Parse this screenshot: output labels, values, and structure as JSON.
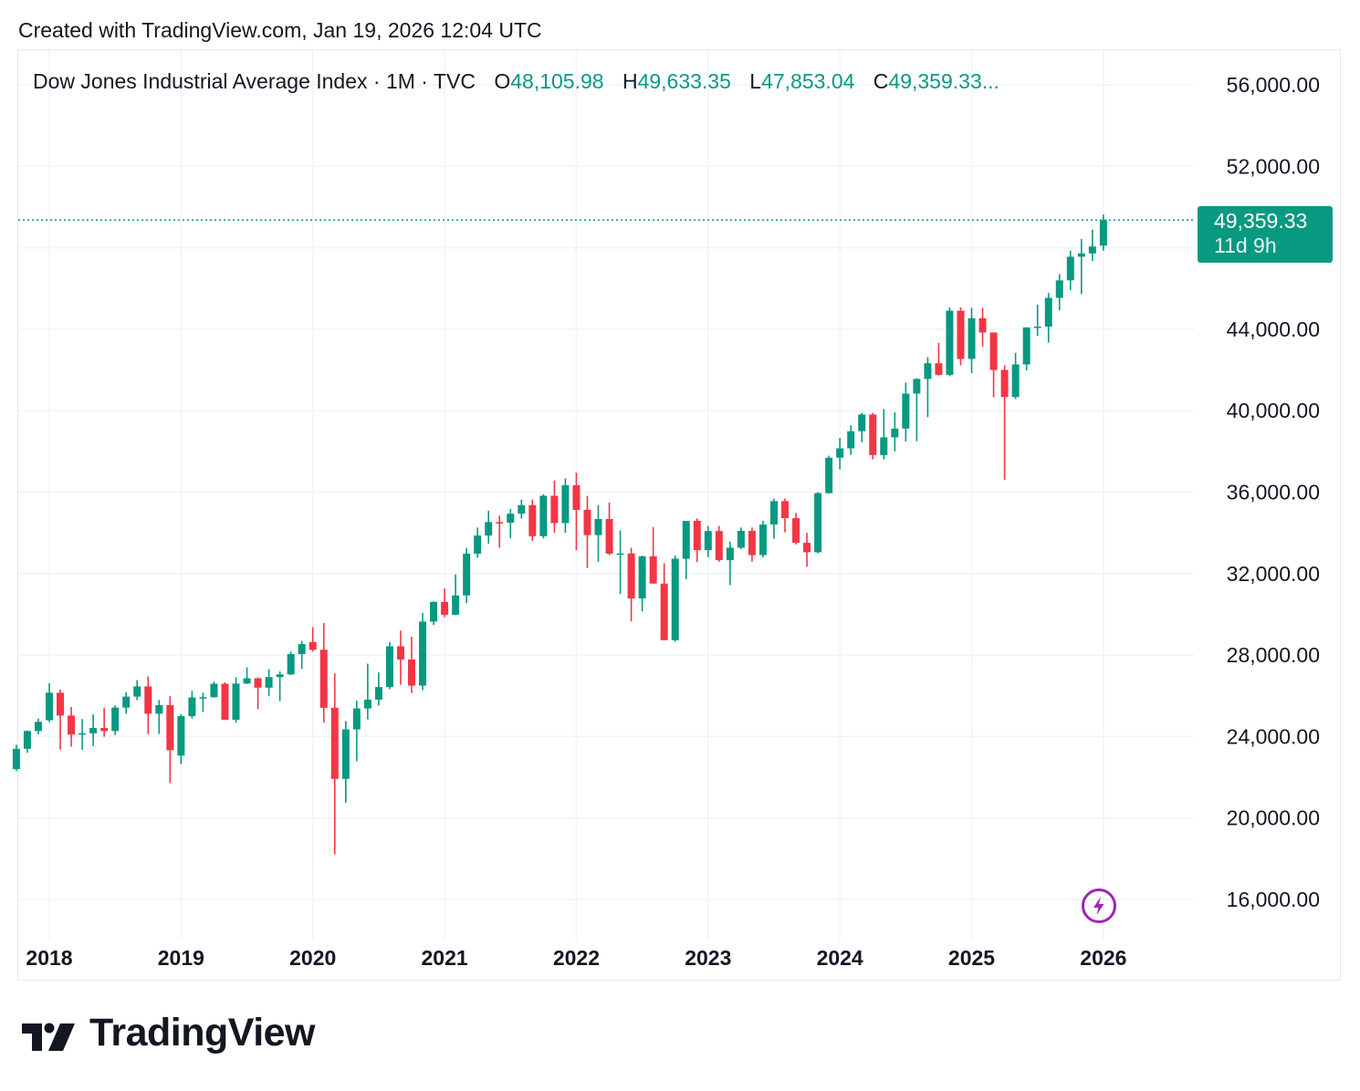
{
  "header": {
    "created_text": "Created with TradingView.com, Jan 19, 2026 12:04 UTC"
  },
  "legend": {
    "symbol": "Dow Jones Industrial Average Index · 1M · TVC",
    "o_label": "O",
    "o_value": "48,105.98",
    "h_label": "H",
    "h_value": "49,633.35",
    "l_label": "L",
    "l_value": "47,853.04",
    "c_label": "C",
    "c_value": "49,359.33..."
  },
  "price_tag": {
    "price": "49,359.33",
    "countdown": "11d 9h"
  },
  "footer": {
    "logo_text": "TradingView"
  },
  "colors": {
    "up": "#089981",
    "down": "#f23645",
    "grid": "#f0f3fa",
    "text": "#131722",
    "marker": "#9c27b0"
  },
  "icons": {
    "realtime_marker": "lightning-bolt-icon",
    "brand_logo": "tradingview-logo-icon"
  },
  "chart_data": {
    "type": "candlestick",
    "title": "Dow Jones Industrial Average Index · 1M · TVC",
    "interval": "1M",
    "y_range": [
      14000,
      57200
    ],
    "y_ticks": [
      16000,
      20000,
      24000,
      28000,
      32000,
      36000,
      40000,
      44000,
      52000,
      56000
    ],
    "y_tick_labels": [
      "16,000.00",
      "20,000.00",
      "24,000.00",
      "28,000.00",
      "32,000.00",
      "36,000.00",
      "40,000.00",
      "44,000.00",
      "52,000.00",
      "56,000.00"
    ],
    "x_labels": [
      {
        "label": "2018",
        "date": "2018-01"
      },
      {
        "label": "2019",
        "date": "2019-01"
      },
      {
        "label": "2020",
        "date": "2020-01"
      },
      {
        "label": "2021",
        "date": "2021-01"
      },
      {
        "label": "2022",
        "date": "2022-01"
      },
      {
        "label": "2023",
        "date": "2023-01"
      },
      {
        "label": "2024",
        "date": "2024-01"
      },
      {
        "label": "2025",
        "date": "2025-01"
      },
      {
        "label": "2026",
        "date": "2026-01"
      }
    ],
    "last_price": 49359.33,
    "grid": true,
    "candles": [
      {
        "t": "2017-10",
        "o": 22400,
        "h": 23600,
        "l": 22300,
        "c": 23400
      },
      {
        "t": "2017-11",
        "o": 23400,
        "h": 24300,
        "l": 23200,
        "c": 24270
      },
      {
        "t": "2017-12",
        "o": 24270,
        "h": 24880,
        "l": 24100,
        "c": 24720
      },
      {
        "t": "2018-01",
        "o": 24800,
        "h": 26620,
        "l": 24700,
        "c": 26150
      },
      {
        "t": "2018-02",
        "o": 26150,
        "h": 26300,
        "l": 23360,
        "c": 25030
      },
      {
        "t": "2018-03",
        "o": 25030,
        "h": 25450,
        "l": 23510,
        "c": 24100
      },
      {
        "t": "2018-04",
        "o": 24100,
        "h": 24860,
        "l": 23340,
        "c": 24160
      },
      {
        "t": "2018-05",
        "o": 24160,
        "h": 25090,
        "l": 23530,
        "c": 24420
      },
      {
        "t": "2018-06",
        "o": 24420,
        "h": 25400,
        "l": 23990,
        "c": 24270
      },
      {
        "t": "2018-07",
        "o": 24270,
        "h": 25530,
        "l": 24070,
        "c": 25420
      },
      {
        "t": "2018-08",
        "o": 25420,
        "h": 26170,
        "l": 25120,
        "c": 25960
      },
      {
        "t": "2018-09",
        "o": 25960,
        "h": 26770,
        "l": 25780,
        "c": 26460
      },
      {
        "t": "2018-10",
        "o": 26460,
        "h": 26950,
        "l": 24120,
        "c": 25120
      },
      {
        "t": "2018-11",
        "o": 25120,
        "h": 25800,
        "l": 24120,
        "c": 25540
      },
      {
        "t": "2018-12",
        "o": 25540,
        "h": 25980,
        "l": 21710,
        "c": 23330
      },
      {
        "t": "2019-01",
        "o": 23060,
        "h": 25100,
        "l": 22640,
        "c": 25000
      },
      {
        "t": "2019-02",
        "o": 25000,
        "h": 26240,
        "l": 24880,
        "c": 25920
      },
      {
        "t": "2019-03",
        "o": 25920,
        "h": 26160,
        "l": 25210,
        "c": 25930
      },
      {
        "t": "2019-04",
        "o": 25930,
        "h": 26700,
        "l": 25900,
        "c": 26590
      },
      {
        "t": "2019-05",
        "o": 26590,
        "h": 26660,
        "l": 24810,
        "c": 24820
      },
      {
        "t": "2019-06",
        "o": 24820,
        "h": 26910,
        "l": 24680,
        "c": 26600
      },
      {
        "t": "2019-07",
        "o": 26600,
        "h": 27400,
        "l": 26580,
        "c": 26860
      },
      {
        "t": "2019-08",
        "o": 26860,
        "h": 26900,
        "l": 25340,
        "c": 26400
      },
      {
        "t": "2019-09",
        "o": 26400,
        "h": 27310,
        "l": 25980,
        "c": 26920
      },
      {
        "t": "2019-10",
        "o": 26920,
        "h": 27200,
        "l": 25740,
        "c": 27050
      },
      {
        "t": "2019-11",
        "o": 27050,
        "h": 28170,
        "l": 27020,
        "c": 28050
      },
      {
        "t": "2019-12",
        "o": 28050,
        "h": 28700,
        "l": 27320,
        "c": 28540
      },
      {
        "t": "2020-01",
        "o": 28640,
        "h": 29370,
        "l": 28170,
        "c": 28260
      },
      {
        "t": "2020-02",
        "o": 28260,
        "h": 29570,
        "l": 24680,
        "c": 25410
      },
      {
        "t": "2020-03",
        "o": 25410,
        "h": 27100,
        "l": 18210,
        "c": 21920
      },
      {
        "t": "2020-04",
        "o": 21920,
        "h": 24760,
        "l": 20740,
        "c": 24350
      },
      {
        "t": "2020-05",
        "o": 24350,
        "h": 25760,
        "l": 22790,
        "c": 25380
      },
      {
        "t": "2020-06",
        "o": 25380,
        "h": 27580,
        "l": 24840,
        "c": 25810
      },
      {
        "t": "2020-07",
        "o": 25810,
        "h": 27150,
        "l": 25520,
        "c": 26430
      },
      {
        "t": "2020-08",
        "o": 26430,
        "h": 28630,
        "l": 26320,
        "c": 28430
      },
      {
        "t": "2020-09",
        "o": 28430,
        "h": 29200,
        "l": 26540,
        "c": 27780
      },
      {
        "t": "2020-10",
        "o": 27780,
        "h": 28900,
        "l": 26140,
        "c": 26500
      },
      {
        "t": "2020-11",
        "o": 26500,
        "h": 30070,
        "l": 26270,
        "c": 29640
      },
      {
        "t": "2020-12",
        "o": 29640,
        "h": 30640,
        "l": 29480,
        "c": 30610
      },
      {
        "t": "2021-01",
        "o": 30610,
        "h": 31270,
        "l": 29860,
        "c": 29980
      },
      {
        "t": "2021-02",
        "o": 29980,
        "h": 31960,
        "l": 29960,
        "c": 30930
      },
      {
        "t": "2021-03",
        "o": 30930,
        "h": 33260,
        "l": 30550,
        "c": 32980
      },
      {
        "t": "2021-04",
        "o": 32980,
        "h": 34260,
        "l": 32780,
        "c": 33870
      },
      {
        "t": "2021-05",
        "o": 33870,
        "h": 35090,
        "l": 33470,
        "c": 34530
      },
      {
        "t": "2021-06",
        "o": 34530,
        "h": 34850,
        "l": 33270,
        "c": 34500
      },
      {
        "t": "2021-07",
        "o": 34500,
        "h": 35170,
        "l": 33740,
        "c": 34940
      },
      {
        "t": "2021-08",
        "o": 34940,
        "h": 35630,
        "l": 34700,
        "c": 35360
      },
      {
        "t": "2021-09",
        "o": 35360,
        "h": 35630,
        "l": 33610,
        "c": 33840
      },
      {
        "t": "2021-10",
        "o": 33840,
        "h": 35900,
        "l": 33730,
        "c": 35820
      },
      {
        "t": "2021-11",
        "o": 35820,
        "h": 36570,
        "l": 34010,
        "c": 34480
      },
      {
        "t": "2021-12",
        "o": 34480,
        "h": 36680,
        "l": 34000,
        "c": 36340
      },
      {
        "t": "2022-01",
        "o": 36340,
        "h": 36950,
        "l": 33150,
        "c": 35130
      },
      {
        "t": "2022-02",
        "o": 35130,
        "h": 35820,
        "l": 32270,
        "c": 33890
      },
      {
        "t": "2022-03",
        "o": 33890,
        "h": 35370,
        "l": 32580,
        "c": 34680
      },
      {
        "t": "2022-04",
        "o": 34680,
        "h": 35490,
        "l": 32910,
        "c": 32980
      },
      {
        "t": "2022-05",
        "o": 32980,
        "h": 34120,
        "l": 31000,
        "c": 32990
      },
      {
        "t": "2022-06",
        "o": 32990,
        "h": 33270,
        "l": 29650,
        "c": 30780
      },
      {
        "t": "2022-07",
        "o": 30780,
        "h": 32880,
        "l": 30140,
        "c": 32850
      },
      {
        "t": "2022-08",
        "o": 32850,
        "h": 34280,
        "l": 31510,
        "c": 31510
      },
      {
        "t": "2022-09",
        "o": 31510,
        "h": 32500,
        "l": 28720,
        "c": 28730
      },
      {
        "t": "2022-10",
        "o": 28730,
        "h": 32880,
        "l": 28660,
        "c": 32730
      },
      {
        "t": "2022-11",
        "o": 32730,
        "h": 34590,
        "l": 31730,
        "c": 34590
      },
      {
        "t": "2022-12",
        "o": 34590,
        "h": 34710,
        "l": 32570,
        "c": 33150
      },
      {
        "t": "2023-01",
        "o": 33150,
        "h": 34340,
        "l": 32810,
        "c": 34090
      },
      {
        "t": "2023-02",
        "o": 34090,
        "h": 34340,
        "l": 32580,
        "c": 32660
      },
      {
        "t": "2023-03",
        "o": 32660,
        "h": 33570,
        "l": 31430,
        "c": 33270
      },
      {
        "t": "2023-04",
        "o": 33270,
        "h": 34260,
        "l": 33200,
        "c": 34100
      },
      {
        "t": "2023-05",
        "o": 34100,
        "h": 34260,
        "l": 32590,
        "c": 32910
      },
      {
        "t": "2023-06",
        "o": 32910,
        "h": 34590,
        "l": 32800,
        "c": 34410
      },
      {
        "t": "2023-07",
        "o": 34410,
        "h": 35680,
        "l": 33710,
        "c": 35560
      },
      {
        "t": "2023-08",
        "o": 35560,
        "h": 35680,
        "l": 34030,
        "c": 34720
      },
      {
        "t": "2023-09",
        "o": 34720,
        "h": 34980,
        "l": 33430,
        "c": 33510
      },
      {
        "t": "2023-10",
        "o": 33510,
        "h": 34000,
        "l": 32330,
        "c": 33050
      },
      {
        "t": "2023-11",
        "o": 33050,
        "h": 36000,
        "l": 32990,
        "c": 35950
      },
      {
        "t": "2023-12",
        "o": 35950,
        "h": 37790,
        "l": 35930,
        "c": 37690
      },
      {
        "t": "2024-01",
        "o": 37690,
        "h": 38660,
        "l": 37120,
        "c": 38150
      },
      {
        "t": "2024-02",
        "o": 38150,
        "h": 39280,
        "l": 37830,
        "c": 38990
      },
      {
        "t": "2024-03",
        "o": 38990,
        "h": 39890,
        "l": 38450,
        "c": 39810
      },
      {
        "t": "2024-04",
        "o": 39810,
        "h": 39890,
        "l": 37610,
        "c": 37820
      },
      {
        "t": "2024-05",
        "o": 37820,
        "h": 40080,
        "l": 37610,
        "c": 38690
      },
      {
        "t": "2024-06",
        "o": 38690,
        "h": 39920,
        "l": 38000,
        "c": 39120
      },
      {
        "t": "2024-07",
        "o": 39120,
        "h": 41380,
        "l": 38490,
        "c": 40840
      },
      {
        "t": "2024-08",
        "o": 40840,
        "h": 41590,
        "l": 38500,
        "c": 41560
      },
      {
        "t": "2024-09",
        "o": 41560,
        "h": 42630,
        "l": 39680,
        "c": 42330
      },
      {
        "t": "2024-10",
        "o": 42330,
        "h": 43330,
        "l": 41730,
        "c": 41760
      },
      {
        "t": "2024-11",
        "o": 41760,
        "h": 45070,
        "l": 41690,
        "c": 44910
      },
      {
        "t": "2024-12",
        "o": 44910,
        "h": 45070,
        "l": 42230,
        "c": 42540
      },
      {
        "t": "2025-01",
        "o": 42540,
        "h": 45050,
        "l": 41840,
        "c": 44540
      },
      {
        "t": "2025-02",
        "o": 44540,
        "h": 45050,
        "l": 43150,
        "c": 43840
      },
      {
        "t": "2025-03",
        "o": 43840,
        "h": 43840,
        "l": 40660,
        "c": 42000
      },
      {
        "t": "2025-04",
        "o": 42000,
        "h": 42230,
        "l": 36610,
        "c": 40670
      },
      {
        "t": "2025-05",
        "o": 40670,
        "h": 42840,
        "l": 40570,
        "c": 42270
      },
      {
        "t": "2025-06",
        "o": 42270,
        "h": 44090,
        "l": 41980,
        "c": 44090
      },
      {
        "t": "2025-07",
        "o": 44090,
        "h": 45210,
        "l": 43670,
        "c": 44130
      },
      {
        "t": "2025-08",
        "o": 44130,
        "h": 45780,
        "l": 43340,
        "c": 45540
      },
      {
        "t": "2025-09",
        "o": 45540,
        "h": 46710,
        "l": 44920,
        "c": 46400
      },
      {
        "t": "2025-10",
        "o": 46400,
        "h": 47860,
        "l": 45920,
        "c": 47560
      },
      {
        "t": "2025-11",
        "o": 47560,
        "h": 48430,
        "l": 45730,
        "c": 47720
      },
      {
        "t": "2025-12",
        "o": 47720,
        "h": 48890,
        "l": 47350,
        "c": 48060
      },
      {
        "t": "2026-01",
        "o": 48105.98,
        "h": 49633.35,
        "l": 47853.04,
        "c": 49359.33
      }
    ]
  }
}
